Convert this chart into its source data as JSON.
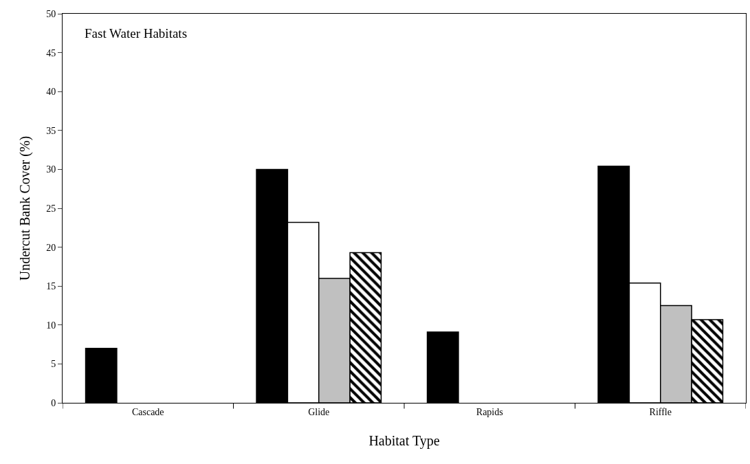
{
  "chart_data": {
    "type": "bar",
    "xlabel": "Habitat Type",
    "ylabel": "Undercut Bank Cover (%)",
    "annotations": [
      "Fast Water Habitats"
    ],
    "categories": [
      "Cascade",
      "Glide",
      "Rapids",
      "Riffle"
    ],
    "series": [
      {
        "color": "#000000",
        "values": [
          7.0,
          30.0,
          9.1,
          30.4
        ]
      },
      {
        "color": "#ffffff",
        "values": [
          null,
          23.2,
          null,
          15.4
        ]
      },
      {
        "color": "#c0c0c0",
        "values": [
          null,
          16.0,
          null,
          12.5
        ]
      },
      {
        "color": "#000000",
        "values": [
          null,
          19.3,
          null,
          10.7
        ]
      }
    ],
    "ylim": [
      0,
      50
    ],
    "yticks": [
      0,
      5,
      10,
      15,
      20,
      25,
      30,
      35,
      40,
      45,
      50
    ],
    "grid": false
  }
}
